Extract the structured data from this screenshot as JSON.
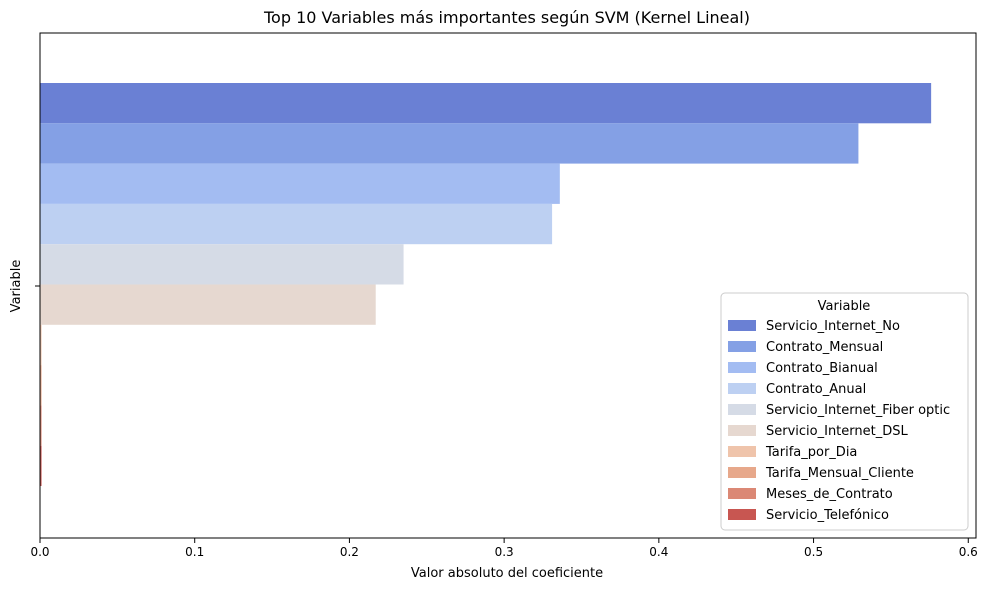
{
  "chart_data": {
    "type": "bar",
    "orientation": "horizontal",
    "title": "Top 10 Variables más importantes según SVM (Kernel Lineal)",
    "xlabel": "Valor absoluto del coeficiente",
    "ylabel": "Variable",
    "xlim": [
      0,
      0.605
    ],
    "x_ticks": [
      0.0,
      0.1,
      0.2,
      0.3,
      0.4,
      0.5,
      0.6
    ],
    "x_tick_labels": [
      "0.0",
      "0.1",
      "0.2",
      "0.3",
      "0.4",
      "0.5",
      "0.6"
    ],
    "grid": false,
    "legend": {
      "title": "Variable",
      "position": "lower-right"
    },
    "series": [
      {
        "name": "Servicio_Internet_No",
        "value": 0.576,
        "color": "#6a80d4"
      },
      {
        "name": "Contrato_Mensual",
        "value": 0.529,
        "color": "#84a0e5"
      },
      {
        "name": "Contrato_Bianual",
        "value": 0.336,
        "color": "#a3bcf2"
      },
      {
        "name": "Contrato_Anual",
        "value": 0.331,
        "color": "#bdd0f2"
      },
      {
        "name": "Servicio_Internet_Fiber optic",
        "value": 0.235,
        "color": "#d5dbe6"
      },
      {
        "name": "Servicio_Internet_DSL",
        "value": 0.217,
        "color": "#e6d8d0"
      },
      {
        "name": "Tarifa_por_Dia",
        "value": 0.001,
        "color": "#efc4ab"
      },
      {
        "name": "Tarifa_Mensual_Cliente",
        "value": 0.001,
        "color": "#e7a88b"
      },
      {
        "name": "Meses_de_Contrato",
        "value": 0.001,
        "color": "#db8875"
      },
      {
        "name": "Servicio_Telefónico",
        "value": 0.001,
        "color": "#c85651"
      }
    ]
  }
}
